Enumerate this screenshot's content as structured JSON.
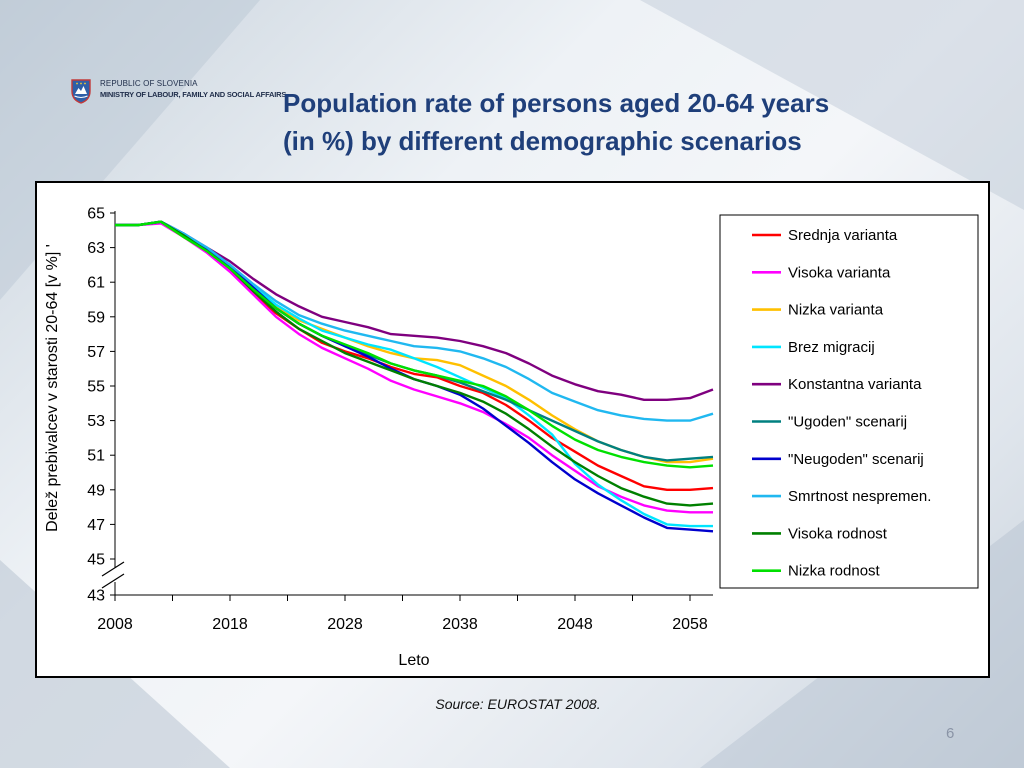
{
  "header": {
    "org_line1": "REPUBLIC OF SLOVENIA",
    "org_line2": "MINISTRY OF LABOUR, FAMILY AND SOCIAL AFFAIRS",
    "logo_icon": "slovenia-coat-of-arms-icon"
  },
  "title_line1": "Population rate of persons aged 20-64 years",
  "title_line2": "(in %) by different demographic scenarios",
  "source": "Source: EUROSTAT 2008.",
  "page_number": "6",
  "chart_data": {
    "type": "line",
    "title": "",
    "xlabel": "Leto",
    "ylabel": "Delež prebivalcev v starosti 20-64 [v %] '",
    "xlim": [
      2008,
      2060
    ],
    "ylim": [
      43,
      65
    ],
    "axis_break": "between 43 and 45",
    "xticks": [
      2008,
      2018,
      2028,
      2038,
      2048,
      2058
    ],
    "yticks": [
      43,
      45,
      47,
      49,
      51,
      53,
      55,
      57,
      59,
      61,
      63,
      65
    ],
    "grid": false,
    "legend_position": "right",
    "x": [
      2008,
      2010,
      2012,
      2014,
      2016,
      2018,
      2020,
      2022,
      2024,
      2026,
      2028,
      2030,
      2032,
      2034,
      2036,
      2038,
      2040,
      2042,
      2044,
      2046,
      2048,
      2050,
      2052,
      2054,
      2056,
      2058,
      2060
    ],
    "series": [
      {
        "name": "Srednja varianta",
        "color": "#ff0000",
        "values": [
          64.3,
          64.3,
          64.5,
          63.6,
          62.8,
          61.7,
          60.4,
          59.2,
          58.3,
          57.5,
          57.0,
          56.6,
          56.1,
          55.7,
          55.5,
          55.0,
          54.6,
          53.9,
          53.0,
          52.0,
          51.2,
          50.4,
          49.8,
          49.2,
          49.0,
          49.0,
          49.1
        ]
      },
      {
        "name": "Visoka varianta",
        "color": "#ff00ff",
        "values": [
          64.3,
          64.3,
          64.4,
          63.6,
          62.7,
          61.6,
          60.3,
          59.0,
          58.0,
          57.2,
          56.6,
          56.0,
          55.3,
          54.8,
          54.4,
          54.0,
          53.5,
          52.8,
          52.0,
          51.0,
          50.1,
          49.2,
          48.6,
          48.1,
          47.8,
          47.7,
          47.7
        ]
      },
      {
        "name": "Nizka varianta",
        "color": "#ffc000",
        "values": [
          64.3,
          64.3,
          64.5,
          63.6,
          62.8,
          61.8,
          60.6,
          59.6,
          58.8,
          58.3,
          57.8,
          57.3,
          56.9,
          56.6,
          56.5,
          56.2,
          55.6,
          55.0,
          54.2,
          53.3,
          52.5,
          51.8,
          51.3,
          50.9,
          50.6,
          50.6,
          50.8
        ]
      },
      {
        "name": "Brez migracij",
        "color": "#00e5ff",
        "values": [
          64.3,
          64.3,
          64.5,
          63.7,
          62.9,
          62.0,
          60.8,
          59.7,
          58.9,
          58.2,
          57.8,
          57.4,
          57.1,
          56.6,
          56.1,
          55.5,
          54.9,
          54.3,
          53.3,
          52.2,
          50.5,
          49.3,
          48.4,
          47.6,
          47.0,
          46.9,
          46.9
        ]
      },
      {
        "name": "Konstantna varianta",
        "color": "#7f007f",
        "values": [
          64.3,
          64.3,
          64.5,
          63.8,
          63.0,
          62.2,
          61.2,
          60.3,
          59.6,
          59.0,
          58.7,
          58.4,
          58.0,
          57.9,
          57.8,
          57.6,
          57.3,
          56.9,
          56.3,
          55.6,
          55.1,
          54.7,
          54.5,
          54.2,
          54.2,
          54.3,
          54.8
        ]
      },
      {
        "name": "\"Ugoden\" scenarij",
        "color": "#008080",
        "values": [
          64.3,
          64.3,
          64.5,
          63.7,
          62.9,
          61.9,
          60.6,
          59.5,
          58.6,
          57.9,
          57.3,
          56.8,
          56.3,
          55.9,
          55.6,
          55.2,
          54.7,
          54.2,
          53.6,
          53.0,
          52.4,
          51.8,
          51.3,
          50.9,
          50.7,
          50.8,
          50.9
        ]
      },
      {
        "name": "\"Neugoden\" scenarij",
        "color": "#0000cd",
        "values": [
          64.3,
          64.3,
          64.5,
          63.8,
          62.9,
          61.9,
          60.7,
          59.5,
          58.6,
          57.9,
          57.3,
          56.7,
          56.0,
          55.4,
          55.0,
          54.5,
          53.7,
          52.7,
          51.7,
          50.6,
          49.6,
          48.8,
          48.1,
          47.4,
          46.8,
          46.7,
          46.6
        ]
      },
      {
        "name": "Smrtnost nespremen.",
        "color": "#20b8f0",
        "values": [
          64.3,
          64.3,
          64.5,
          63.8,
          63.0,
          62.0,
          60.9,
          59.9,
          59.1,
          58.6,
          58.2,
          57.9,
          57.6,
          57.3,
          57.2,
          57.0,
          56.6,
          56.1,
          55.4,
          54.6,
          54.1,
          53.6,
          53.3,
          53.1,
          53.0,
          53.0,
          53.4
        ]
      },
      {
        "name": "Visoka rodnost",
        "color": "#008000",
        "values": [
          64.3,
          64.3,
          64.5,
          63.7,
          62.8,
          61.8,
          60.5,
          59.3,
          58.3,
          57.6,
          56.9,
          56.4,
          55.9,
          55.4,
          55.0,
          54.6,
          54.1,
          53.4,
          52.5,
          51.5,
          50.6,
          49.8,
          49.1,
          48.6,
          48.2,
          48.1,
          48.2
        ]
      },
      {
        "name": "Nizka rodnost",
        "color": "#00e000",
        "values": [
          64.3,
          64.3,
          64.5,
          63.6,
          62.8,
          61.8,
          60.6,
          59.5,
          58.6,
          57.9,
          57.4,
          56.9,
          56.3,
          55.9,
          55.6,
          55.3,
          55.0,
          54.4,
          53.6,
          52.7,
          51.9,
          51.3,
          50.9,
          50.6,
          50.4,
          50.3,
          50.4
        ]
      }
    ]
  }
}
